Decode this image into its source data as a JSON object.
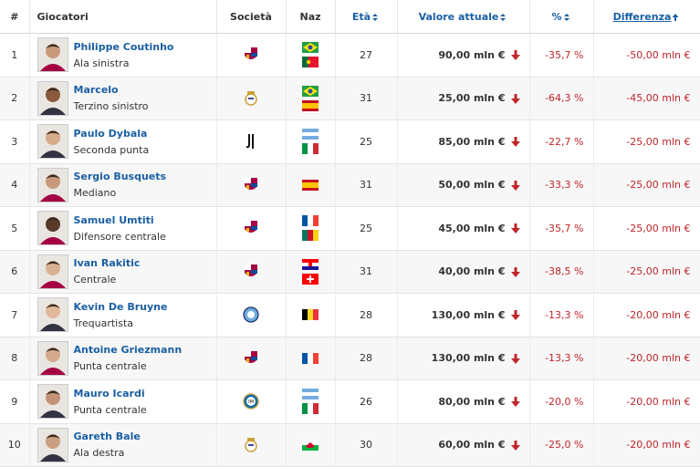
{
  "table": {
    "header": [
      "#",
      "Giocatori",
      "Società",
      "Naz",
      "Età",
      "Valore attuale",
      "%",
      "Differenza"
    ],
    "rows": [
      {
        "rank": "1",
        "name": "Philippe Coutinho",
        "position": "Ala sinistra",
        "age": "27",
        "value": "90,00 mln €",
        "percent": "-35,7 %",
        "difference": "-50,00 mln €"
      },
      {
        "rank": "2",
        "name": "Marcelo",
        "position": "Terzino sinistro",
        "age": "31",
        "value": "25,00 mln €",
        "percent": "-64,3 %",
        "difference": "-45,00 mln €"
      },
      {
        "rank": "3",
        "name": "Paulo Dybala",
        "position": "Seconda punta",
        "age": "25",
        "value": "85,00 mln €",
        "percent": "-22,7 %",
        "difference": "-25,00 mln €"
      },
      {
        "rank": "4",
        "name": "Sergio Busquets",
        "position": "Mediano",
        "age": "31",
        "value": "50,00 mln €",
        "percent": "-33,3 %",
        "difference": "-25,00 mln €"
      },
      {
        "rank": "5",
        "name": "Samuel Umtiti",
        "position": "Difensore centrale",
        "age": "25",
        "value": "45,00 mln €",
        "percent": "-35,7 %",
        "difference": "-25,00 mln €"
      },
      {
        "rank": "6",
        "name": "Ivan Rakitic",
        "position": "Centrale",
        "age": "31",
        "value": "40,00 mln €",
        "percent": "-38,5 %",
        "difference": "-25,00 mln €"
      },
      {
        "rank": "7",
        "name": "Kevin De Bruyne",
        "position": "Trequartista",
        "age": "28",
        "value": "130,00 mln €",
        "percent": "-13,3 %",
        "difference": "-20,00 mln €"
      },
      {
        "rank": "8",
        "name": "Antoine Griezmann",
        "position": "Punta centrale",
        "age": "28",
        "value": "130,00 mln €",
        "percent": "-13,3 %",
        "difference": "-20,00 mln €"
      },
      {
        "rank": "9",
        "name": "Mauro Icardi",
        "position": "Punta centrale",
        "age": "26",
        "value": "80,00 mln €",
        "percent": "-20,0 %",
        "difference": "-20,00 mln €"
      },
      {
        "rank": "10",
        "name": "Gareth Bale",
        "position": "Ala destra",
        "age": "30",
        "value": "60,00 mln €",
        "percent": "-25,0 %",
        "difference": "-20,00 mln €"
      }
    ]
  }
}
